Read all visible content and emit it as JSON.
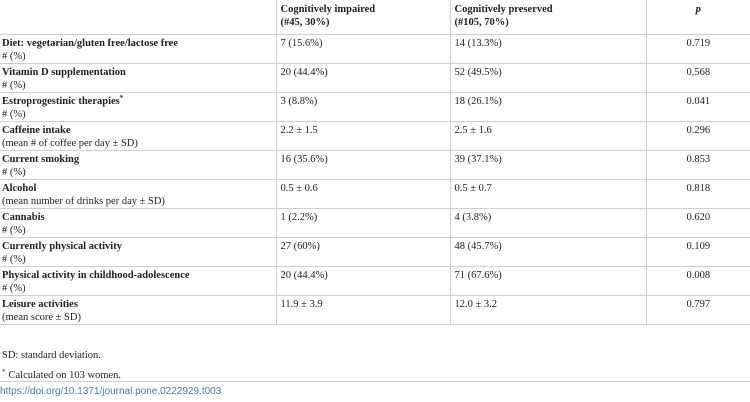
{
  "table": {
    "headers": {
      "col1": "",
      "col2_line1": "Cognitively impaired",
      "col2_line2": "(#45, 30%)",
      "col3_line1": "Cognitively preserved",
      "col3_line2": "(#105, 70%)",
      "col4": "p"
    },
    "rows": [
      {
        "label": "Diet: vegetarian/gluten free/lactose free",
        "sub": "# (%)",
        "impaired": "7 (15.6%)",
        "preserved": "14 (13.3%)",
        "p": "0.719"
      },
      {
        "label": "Vitamin D supplementation",
        "sub": "# (%)",
        "impaired": "20 (44.4%)",
        "preserved": "52 (49.5%)",
        "p": "0.568"
      },
      {
        "label": "Estroprogestinic therapies",
        "mark": "*",
        "sub": "# (%)",
        "impaired": "3 (8.8%)",
        "preserved": "18 (26.1%)",
        "p": "0.041"
      },
      {
        "label": "Caffeine intake",
        "sub": "(mean # of coffee per day ± SD)",
        "impaired": "2.2 ± 1.5",
        "preserved": "2.5 ± 1.6",
        "p": "0.296"
      },
      {
        "label": "Current smoking",
        "sub": "# (%)",
        "impaired": "16 (35.6%)",
        "preserved": "39 (37.1%)",
        "p": "0.853"
      },
      {
        "label": "Alcohol",
        "sub": "(mean number of drinks per day ± SD)",
        "impaired": "0.5 ± 0.6",
        "preserved": "0.5 ± 0.7",
        "p": "0.818"
      },
      {
        "label": "Cannabis",
        "sub": "# (%)",
        "impaired": "1 (2.2%)",
        "preserved": "4 (3.8%)",
        "p": "0.620"
      },
      {
        "label": "Currently physical activity",
        "sub": "# (%)",
        "impaired": "27 (60%)",
        "preserved": "48 (45.7%)",
        "p": "0.109"
      },
      {
        "label": "Physical activity in childhood-adolescence",
        "sub": "# (%)",
        "impaired": "20 (44.4%)",
        "preserved": "71 (67.6%)",
        "p": "0.008"
      },
      {
        "label": "Leisure activities",
        "sub": "(mean score ± SD)",
        "impaired": "11.9 ± 3.9",
        "preserved": "12.0 ± 3.2",
        "p": "0.797"
      }
    ]
  },
  "footnotes": {
    "sd": "SD: standard deviation.",
    "star_mark": "*",
    "star": "Calculated on 103 women."
  },
  "doi": "https://doi.org/10.1371/journal.pone.0222929.t003"
}
